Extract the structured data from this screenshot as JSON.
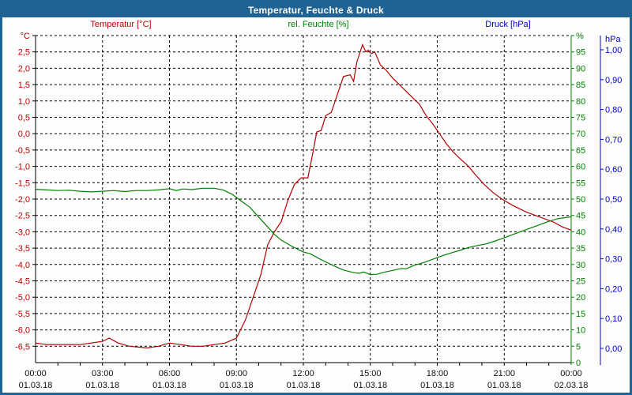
{
  "window": {
    "title": "Temperatur, Feuchte & Druck",
    "title_bar_color": "#1f6394",
    "background_color": "#fdfdfd"
  },
  "legend": {
    "temperature": "Temperatur [°C]",
    "humidity": "rel. Feuchte [%]",
    "pressure": "Druck [hPa]"
  },
  "colors": {
    "temperature": "#c00000",
    "humidity": "#008000",
    "pressure": "#0000cc",
    "grid": "#000000",
    "axis": "#000000"
  },
  "chart_data": {
    "type": "line",
    "title": "Temperatur, Feuchte & Druck",
    "grid": "dashed",
    "x_axis": {
      "unit": "time",
      "range_hours": [
        0,
        24
      ],
      "major_tick_interval_hours": 3,
      "minor_tick_interval_hours": 1,
      "tick_times": [
        "00:00",
        "03:00",
        "06:00",
        "09:00",
        "12:00",
        "15:00",
        "18:00",
        "21:00",
        "00:00"
      ],
      "tick_dates": [
        "01.03.18",
        "01.03.18",
        "01.03.18",
        "01.03.18",
        "01.03.18",
        "01.03.18",
        "01.03.18",
        "01.03.18",
        "02.03.18"
      ]
    },
    "y_axes": [
      {
        "id": "temperature",
        "label": "Temperatur [°C]",
        "unit_label": "°C",
        "side": "left",
        "min": -7,
        "max": 3,
        "tick_step": 0.5,
        "color": "#c00000",
        "tick_labels": [
          "°C",
          "2,5",
          "2,0",
          "1,5",
          "1,0",
          "0,5",
          "0,0",
          "-0,5",
          "-1,0",
          "-1,5",
          "-2,0",
          "-2,5",
          "-3,0",
          "-3,5",
          "-4,0",
          "-4,5",
          "-5,0",
          "-5,5",
          "-6,0",
          "-6,5"
        ],
        "tick_values": [
          3,
          2.5,
          2,
          1.5,
          1,
          0.5,
          0,
          -0.5,
          -1,
          -1.5,
          -2,
          -2.5,
          -3,
          -3.5,
          -4,
          -4.5,
          -5,
          -5.5,
          -6,
          -6.5
        ]
      },
      {
        "id": "humidity",
        "label": "rel. Feuchte [%]",
        "unit_label": "%",
        "side": "right",
        "min": 0,
        "max": 100,
        "tick_step": 5,
        "color": "#008000",
        "tick_labels": [
          "%",
          "95",
          "90",
          "85",
          "80",
          "75",
          "70",
          "65",
          "60",
          "55",
          "50",
          "45",
          "40",
          "35",
          "30",
          "25",
          "20",
          "15",
          "10",
          "5",
          "0"
        ],
        "tick_values": [
          100,
          95,
          90,
          85,
          80,
          75,
          70,
          65,
          60,
          55,
          50,
          45,
          40,
          35,
          30,
          25,
          20,
          15,
          10,
          5,
          0
        ]
      },
      {
        "id": "pressure",
        "label": "Druck [hPa]",
        "unit_label": "hPa",
        "side": "far-right",
        "min": 0,
        "max": 1,
        "tick_step": 0.1,
        "color": "#0000cc",
        "tick_labels": [
          "hPa",
          "1,00",
          "0,90",
          "0,80",
          "0,70",
          "0,60",
          "0,50",
          "0,40",
          "0,30",
          "0,20",
          "0,10",
          "0,00"
        ],
        "tick_values": [
          null,
          1,
          0.9,
          0.8,
          0.7,
          0.6,
          0.5,
          0.4,
          0.3,
          0.2,
          0.1,
          0
        ]
      }
    ],
    "series": [
      {
        "name": "Temperatur",
        "axis": "temperature",
        "color": "#b40000",
        "visible": true,
        "points": [
          [
            0,
            -6.4
          ],
          [
            0.5,
            -6.45
          ],
          [
            1,
            -6.45
          ],
          [
            1.5,
            -6.45
          ],
          [
            2,
            -6.45
          ],
          [
            2.5,
            -6.4
          ],
          [
            3,
            -6.35
          ],
          [
            3.3,
            -6.25
          ],
          [
            3.7,
            -6.4
          ],
          [
            4.2,
            -6.5
          ],
          [
            5,
            -6.55
          ],
          [
            5.5,
            -6.5
          ],
          [
            6,
            -6.4
          ],
          [
            6.5,
            -6.45
          ],
          [
            7,
            -6.5
          ],
          [
            7.5,
            -6.5
          ],
          [
            8,
            -6.45
          ],
          [
            8.5,
            -6.4
          ],
          [
            9,
            -6.25
          ],
          [
            9.4,
            -5.7
          ],
          [
            9.8,
            -4.9
          ],
          [
            10.1,
            -4.3
          ],
          [
            10.4,
            -3.4
          ],
          [
            10.7,
            -3.0
          ],
          [
            11,
            -2.7
          ],
          [
            11.3,
            -2.05
          ],
          [
            11.6,
            -1.55
          ],
          [
            11.9,
            -1.35
          ],
          [
            12.2,
            -1.35
          ],
          [
            12.45,
            -0.5
          ],
          [
            12.6,
            0.05
          ],
          [
            12.8,
            0.1
          ],
          [
            13,
            0.55
          ],
          [
            13.25,
            0.65
          ],
          [
            13.5,
            1.15
          ],
          [
            13.8,
            1.75
          ],
          [
            14.1,
            1.8
          ],
          [
            14.25,
            1.6
          ],
          [
            14.4,
            2.2
          ],
          [
            14.65,
            2.72
          ],
          [
            14.8,
            2.5
          ],
          [
            14.9,
            2.55
          ],
          [
            15.05,
            2.45
          ],
          [
            15.2,
            2.5
          ],
          [
            15.45,
            2.1
          ],
          [
            15.7,
            1.95
          ],
          [
            16,
            1.7
          ],
          [
            16.3,
            1.5
          ],
          [
            16.6,
            1.3
          ],
          [
            16.9,
            1.1
          ],
          [
            17.2,
            0.9
          ],
          [
            17.5,
            0.55
          ],
          [
            17.8,
            0.3
          ],
          [
            18.1,
            0.0
          ],
          [
            18.4,
            -0.3
          ],
          [
            18.7,
            -0.55
          ],
          [
            19,
            -0.75
          ],
          [
            19.4,
            -1.0
          ],
          [
            19.7,
            -1.25
          ],
          [
            20.1,
            -1.55
          ],
          [
            20.5,
            -1.8
          ],
          [
            20.9,
            -2.0
          ],
          [
            21.4,
            -2.2
          ],
          [
            22,
            -2.4
          ],
          [
            22.4,
            -2.5
          ],
          [
            22.8,
            -2.6
          ],
          [
            23.2,
            -2.7
          ],
          [
            23.6,
            -2.85
          ],
          [
            24,
            -2.95
          ]
        ]
      },
      {
        "name": "rel. Feuchte",
        "axis": "humidity",
        "color": "#008000",
        "visible": true,
        "points": [
          [
            0,
            53
          ],
          [
            0.5,
            52.8
          ],
          [
            1,
            52.6
          ],
          [
            1.5,
            52.7
          ],
          [
            2,
            52.4
          ],
          [
            2.5,
            52.2
          ],
          [
            3,
            52.4
          ],
          [
            3.5,
            52.6
          ],
          [
            4,
            52.3
          ],
          [
            4.5,
            52.6
          ],
          [
            5,
            52.6
          ],
          [
            5.5,
            52.8
          ],
          [
            6,
            53.2
          ],
          [
            6.3,
            52.6
          ],
          [
            6.6,
            53.1
          ],
          [
            7,
            52.9
          ],
          [
            7.5,
            53.3
          ],
          [
            8,
            53.3
          ],
          [
            8.4,
            52.8
          ],
          [
            8.8,
            51.5
          ],
          [
            9.2,
            49.5
          ],
          [
            9.6,
            47.5
          ],
          [
            10,
            44.5
          ],
          [
            10.4,
            41.5
          ],
          [
            10.7,
            39.2
          ],
          [
            11,
            37.5
          ],
          [
            11.5,
            35.5
          ],
          [
            12,
            33.8
          ],
          [
            12.3,
            33.3
          ],
          [
            12.7,
            31.8
          ],
          [
            13,
            30.8
          ],
          [
            13.4,
            29.5
          ],
          [
            13.8,
            28.3
          ],
          [
            14.2,
            27.6
          ],
          [
            14.5,
            27.3
          ],
          [
            14.7,
            27.7
          ],
          [
            15,
            26.9
          ],
          [
            15.3,
            27.0
          ],
          [
            15.6,
            27.6
          ],
          [
            16,
            28.2
          ],
          [
            16.4,
            28.8
          ],
          [
            16.6,
            28.7
          ],
          [
            17,
            29.8
          ],
          [
            17.4,
            30.6
          ],
          [
            17.8,
            31.6
          ],
          [
            18.2,
            32.6
          ],
          [
            18.6,
            33.5
          ],
          [
            19,
            34.3
          ],
          [
            19.4,
            35.2
          ],
          [
            19.8,
            35.8
          ],
          [
            20.2,
            36.3
          ],
          [
            20.6,
            37.2
          ],
          [
            21,
            38.2
          ],
          [
            21.4,
            39.2
          ],
          [
            21.8,
            40.2
          ],
          [
            22.2,
            41.2
          ],
          [
            22.6,
            42.2
          ],
          [
            23,
            43.2
          ],
          [
            23.4,
            44.0
          ],
          [
            23.7,
            44.3
          ],
          [
            24,
            44.6
          ]
        ]
      },
      {
        "name": "Druck",
        "axis": "pressure",
        "color": "#0000cc",
        "visible": false,
        "points": []
      }
    ]
  }
}
